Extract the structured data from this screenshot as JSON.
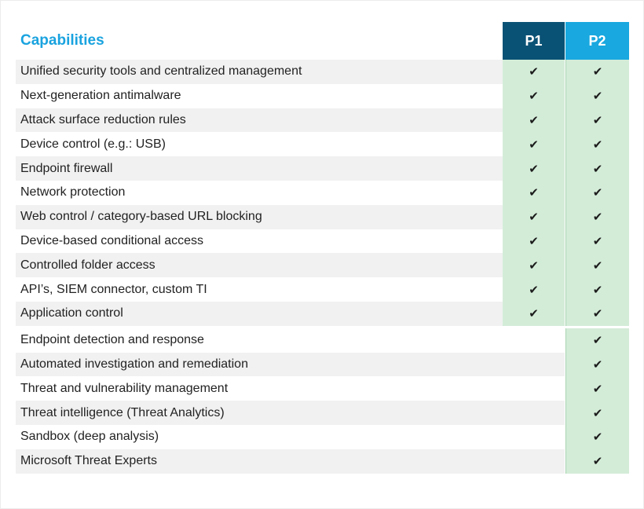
{
  "header": {
    "title": "Capabilities",
    "plan1": "P1",
    "plan2": "P2"
  },
  "colors": {
    "title": "#1aa3df",
    "p1_header": "#0a5275",
    "p2_header": "#19a8df",
    "included_cell": "#d3ecd8",
    "row_stripe": "#f1f1f1"
  },
  "check_mark": "✔",
  "rows": [
    {
      "label": "Unified security tools and centralized management",
      "p1": true,
      "p2": true
    },
    {
      "label": "Next-generation antimalware",
      "p1": true,
      "p2": true
    },
    {
      "label": "Attack surface reduction rules",
      "p1": true,
      "p2": true
    },
    {
      "label": "Device control (e.g.: USB)",
      "p1": true,
      "p2": true
    },
    {
      "label": "Endpoint firewall",
      "p1": true,
      "p2": true
    },
    {
      "label": "Network protection",
      "p1": true,
      "p2": true
    },
    {
      "label": "Web control / category-based URL blocking",
      "p1": true,
      "p2": true
    },
    {
      "label": "Device-based conditional access",
      "p1": true,
      "p2": true
    },
    {
      "label": "Controlled folder access",
      "p1": true,
      "p2": true
    },
    {
      "label": "API’s, SIEM connector, custom TI",
      "p1": true,
      "p2": true
    },
    {
      "label": "Application control",
      "p1": true,
      "p2": true
    },
    {
      "label": "Endpoint detection and response",
      "p1": false,
      "p2": true
    },
    {
      "label": "Automated investigation and remediation",
      "p1": false,
      "p2": true
    },
    {
      "label": "Threat and vulnerability management",
      "p1": false,
      "p2": true
    },
    {
      "label": "Threat intelligence (Threat Analytics)",
      "p1": false,
      "p2": true
    },
    {
      "label": "Sandbox (deep analysis)",
      "p1": false,
      "p2": true
    },
    {
      "label": "Microsoft Threat Experts",
      "p1": false,
      "p2": true
    }
  ]
}
